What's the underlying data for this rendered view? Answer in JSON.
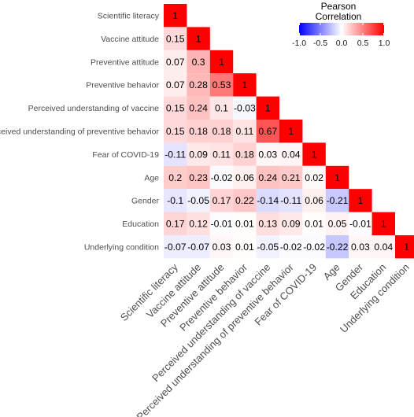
{
  "chart_data": {
    "type": "heatmap",
    "subtype": "lower-triangular correlation matrix",
    "variables": [
      "Scientific literacy",
      "Vaccine attitude",
      "Preventive attitude",
      "Preventive behavior",
      "Perceived understanding of vaccine",
      "Perceived understanding of preventive behavior",
      "Fear of COVID-19",
      "Age",
      "Gender",
      "Education",
      "Underlying condition"
    ],
    "values": [
      [
        1
      ],
      [
        0.15,
        1
      ],
      [
        0.07,
        0.3,
        1
      ],
      [
        0.07,
        0.28,
        0.53,
        1
      ],
      [
        0.15,
        0.24,
        0.1,
        -0.03,
        1
      ],
      [
        0.15,
        0.18,
        0.18,
        0.11,
        0.67,
        1
      ],
      [
        -0.11,
        0.09,
        0.11,
        0.18,
        0.03,
        0.04,
        1
      ],
      [
        0.2,
        0.23,
        -0.02,
        0.06,
        0.24,
        0.21,
        0.02,
        1
      ],
      [
        -0.1,
        -0.05,
        0.17,
        0.22,
        -0.14,
        -0.11,
        0.06,
        -0.21,
        1
      ],
      [
        0.17,
        0.12,
        -0.01,
        0.01,
        0.13,
        0.09,
        0.01,
        0.05,
        -0.01,
        1
      ],
      [
        -0.07,
        -0.07,
        0.03,
        0.01,
        -0.05,
        -0.02,
        -0.02,
        -0.22,
        0.03,
        0.04,
        1
      ]
    ],
    "legend": {
      "title_line1": "Pearson",
      "title_line2": "Correlation",
      "range": [
        -1,
        1
      ],
      "ticks": [
        "-1.0",
        "-0.5",
        "0.0",
        "0.5",
        "1.0"
      ],
      "tick_values": [
        -1,
        -0.5,
        0,
        0.5,
        1
      ],
      "placement": "top-right",
      "colors": {
        "low": "#0000ff",
        "mid": "#ffffff",
        "high": "#ff0000"
      }
    },
    "grid": false
  }
}
